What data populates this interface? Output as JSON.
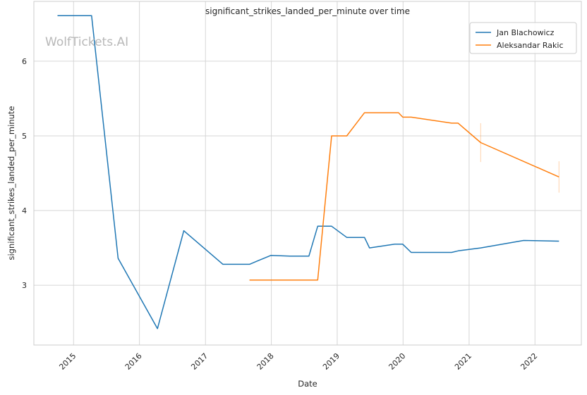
{
  "chart_data": {
    "type": "line",
    "title": "significant_strikes_landed_per_minute over time",
    "xlabel": "Date",
    "ylabel": "significant_strikes_landed_per_minute",
    "watermark": "WolfTickets.AI",
    "xlim": [
      "2014-05-26",
      "2022-09-15"
    ],
    "ylim": [
      2.2,
      6.8
    ],
    "xticks": [
      "2015",
      "2016",
      "2017",
      "2018",
      "2019",
      "2020",
      "2021",
      "2022"
    ],
    "yticks": [
      3,
      4,
      5,
      6
    ],
    "grid": true,
    "legend_position": "top-right",
    "series": [
      {
        "name": "Jan Blachowicz",
        "color": "#1f77b4",
        "points": [
          [
            "2014-10-04",
            6.61
          ],
          [
            "2015-04-11",
            6.61
          ],
          [
            "2015-09-05",
            3.36
          ],
          [
            "2016-04-10",
            2.42
          ],
          [
            "2016-09-03",
            3.73
          ],
          [
            "2017-04-08",
            3.28
          ],
          [
            "2017-09-02",
            3.28
          ],
          [
            "2017-10-21",
            3.33
          ],
          [
            "2017-12-30",
            3.4
          ],
          [
            "2018-04-14",
            3.39
          ],
          [
            "2018-07-28",
            3.39
          ],
          [
            "2018-09-15",
            3.79
          ],
          [
            "2018-12-01",
            3.79
          ],
          [
            "2019-02-23",
            3.64
          ],
          [
            "2019-06-01",
            3.64
          ],
          [
            "2019-06-29",
            3.5
          ],
          [
            "2019-11-16",
            3.55
          ],
          [
            "2019-12-30",
            3.55
          ],
          [
            "2020-02-15",
            3.44
          ],
          [
            "2020-09-26",
            3.44
          ],
          [
            "2020-11-01",
            3.46
          ],
          [
            "2021-03-06",
            3.5
          ],
          [
            "2021-10-30",
            3.6
          ],
          [
            "2022-05-14",
            3.59
          ]
        ]
      },
      {
        "name": "Aleksandar Rakic",
        "color": "#ff7f0e",
        "points": [
          [
            "2017-09-02",
            3.07
          ],
          [
            "2018-09-15",
            3.07
          ],
          [
            "2018-12-01",
            5.0
          ],
          [
            "2019-02-23",
            5.0
          ],
          [
            "2019-06-01",
            5.31
          ],
          [
            "2019-12-07",
            5.31
          ],
          [
            "2019-12-30",
            5.25
          ],
          [
            "2020-02-15",
            5.25
          ],
          [
            "2020-09-26",
            5.17
          ],
          [
            "2020-11-01",
            5.17
          ],
          [
            "2021-03-06",
            4.91
          ],
          [
            "2022-05-14",
            4.45
          ]
        ],
        "error_bars": [
          {
            "x": "2021-03-06",
            "low": 4.65,
            "high": 5.17
          },
          {
            "x": "2022-05-14",
            "low": 4.24,
            "high": 4.66
          }
        ]
      }
    ]
  }
}
